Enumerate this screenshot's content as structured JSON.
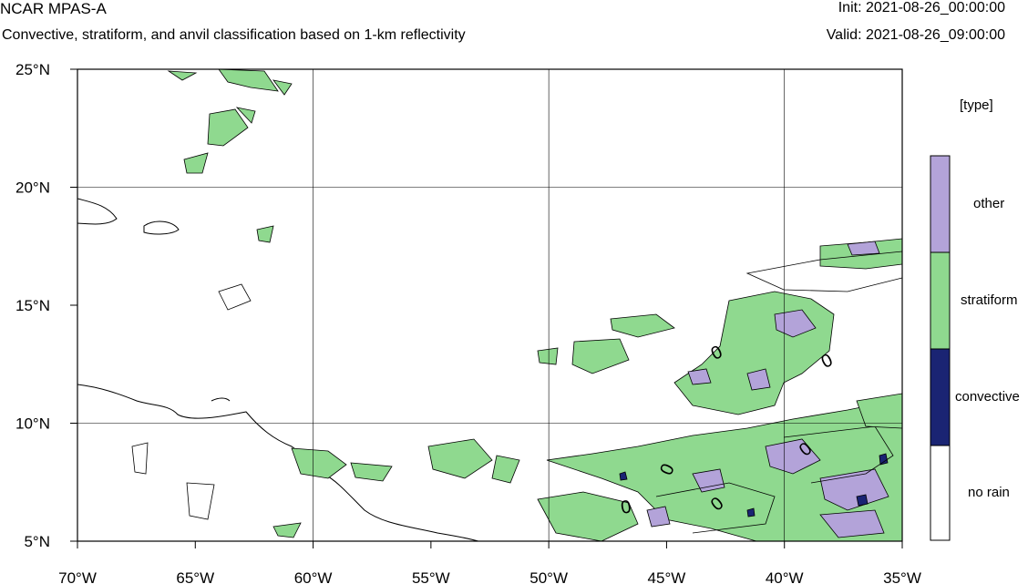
{
  "header": {
    "title": "NCAR MPAS-A",
    "subtitle": "Convective, stratiform, and anvil classification based on 1-km reflectivity",
    "init": "Init: 2021-08-26_00:00:00",
    "valid": "Valid: 2021-08-26_09:00:00"
  },
  "map": {
    "lon_range": [
      -70,
      -35
    ],
    "lat_range": [
      5,
      25
    ],
    "x_ticks": [
      {
        "value": -70,
        "label": "70°W"
      },
      {
        "value": -65,
        "label": "65°W"
      },
      {
        "value": -60,
        "label": "60°W"
      },
      {
        "value": -55,
        "label": "55°W"
      },
      {
        "value": -50,
        "label": "50°W"
      },
      {
        "value": -45,
        "label": "45°W"
      },
      {
        "value": -40,
        "label": "40°W"
      },
      {
        "value": -35,
        "label": "35°W"
      }
    ],
    "y_ticks": [
      {
        "value": 25,
        "label": "25°N"
      },
      {
        "value": 20,
        "label": "20°N"
      },
      {
        "value": 15,
        "label": "15°N"
      },
      {
        "value": 10,
        "label": "10°N"
      },
      {
        "value": 5,
        "label": "5°N"
      }
    ],
    "grid_lon": [
      -60,
      -50,
      -40
    ],
    "grid_lat": [
      10,
      20
    ],
    "contour_labels": [
      "0",
      "0",
      "0",
      "0",
      "0",
      "0"
    ]
  },
  "legend": {
    "title": "[type]",
    "items": [
      {
        "label": "other",
        "color": "#b3a3d9"
      },
      {
        "label": "stratiform",
        "color": "#8fd98f"
      },
      {
        "label": "convective",
        "color": "#1a2473"
      },
      {
        "label": "no rain",
        "color": "#ffffff"
      }
    ]
  }
}
